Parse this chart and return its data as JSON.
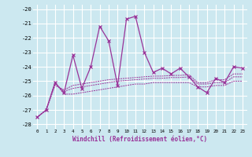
{
  "xlabel": "Windchill (Refroidissement éolien,°C)",
  "x": [
    0,
    1,
    2,
    3,
    4,
    5,
    6,
    7,
    8,
    9,
    10,
    11,
    12,
    13,
    14,
    15,
    16,
    17,
    18,
    19,
    20,
    21,
    22,
    23
  ],
  "line1": [
    -27.5,
    -27.0,
    -25.1,
    -25.8,
    -23.2,
    -25.5,
    -24.0,
    -21.2,
    -22.2,
    -25.3,
    -20.7,
    -20.5,
    -23.0,
    -24.4,
    -24.1,
    -24.5,
    -24.1,
    -24.7,
    -25.4,
    -25.8,
    -24.8,
    -25.1,
    -24.0,
    -24.1
  ],
  "line2": [
    -27.5,
    -27.0,
    -25.1,
    -25.9,
    -25.9,
    -25.8,
    -25.7,
    -25.6,
    -25.5,
    -25.4,
    -25.3,
    -25.2,
    -25.2,
    -25.1,
    -25.1,
    -25.1,
    -25.1,
    -25.1,
    -25.4,
    -25.4,
    -25.3,
    -25.3,
    -25.0,
    -25.0
  ],
  "line3": [
    -27.5,
    -27.0,
    -25.2,
    -25.7,
    -25.5,
    -25.4,
    -25.3,
    -25.2,
    -25.1,
    -25.0,
    -24.95,
    -24.9,
    -24.85,
    -24.8,
    -24.8,
    -24.75,
    -24.75,
    -24.7,
    -25.2,
    -25.2,
    -25.1,
    -25.1,
    -24.7,
    -24.7
  ],
  "line4": [
    -27.5,
    -27.0,
    -25.3,
    -25.6,
    -25.3,
    -25.2,
    -25.1,
    -25.0,
    -24.9,
    -24.85,
    -24.8,
    -24.75,
    -24.7,
    -24.65,
    -24.65,
    -24.6,
    -24.6,
    -24.55,
    -25.1,
    -25.1,
    -24.9,
    -24.9,
    -24.5,
    -24.5
  ],
  "color": "#993399",
  "bg_color": "#cce8f0",
  "grid_color": "#ffffff",
  "ylim": [
    -28.3,
    -19.7
  ],
  "yticks": [
    -28,
    -27,
    -26,
    -25,
    -24,
    -23,
    -22,
    -21,
    -20
  ],
  "xlim": [
    -0.5,
    23.5
  ]
}
